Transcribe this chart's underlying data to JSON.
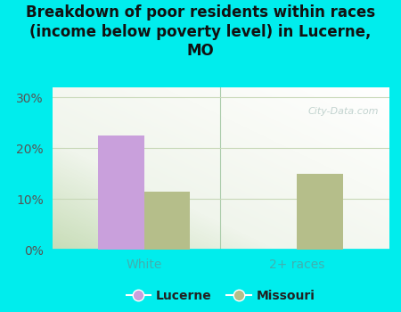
{
  "title": "Breakdown of poor residents within races\n(income below poverty level) in Lucerne,\nMO",
  "categories": [
    "White",
    "2+ races"
  ],
  "lucerne_values": [
    22.5,
    0
  ],
  "missouri_values": [
    11.5,
    15.0
  ],
  "lucerne_color": "#c9a0dc",
  "missouri_color": "#b5be8a",
  "background_color": "#00eded",
  "yticks": [
    0,
    10,
    20,
    30
  ],
  "ytick_labels": [
    "0%",
    "10%",
    "20%",
    "30%"
  ],
  "ylim": [
    0,
    32
  ],
  "bar_width": 0.3,
  "legend_labels": [
    "Lucerne",
    "Missouri"
  ],
  "watermark": "City-Data.com",
  "xlabel_color": "#40b0b0",
  "ytick_color": "#555555",
  "grid_color": "#c8d8b8",
  "title_fontsize": 12,
  "tick_label_fontsize": 10
}
